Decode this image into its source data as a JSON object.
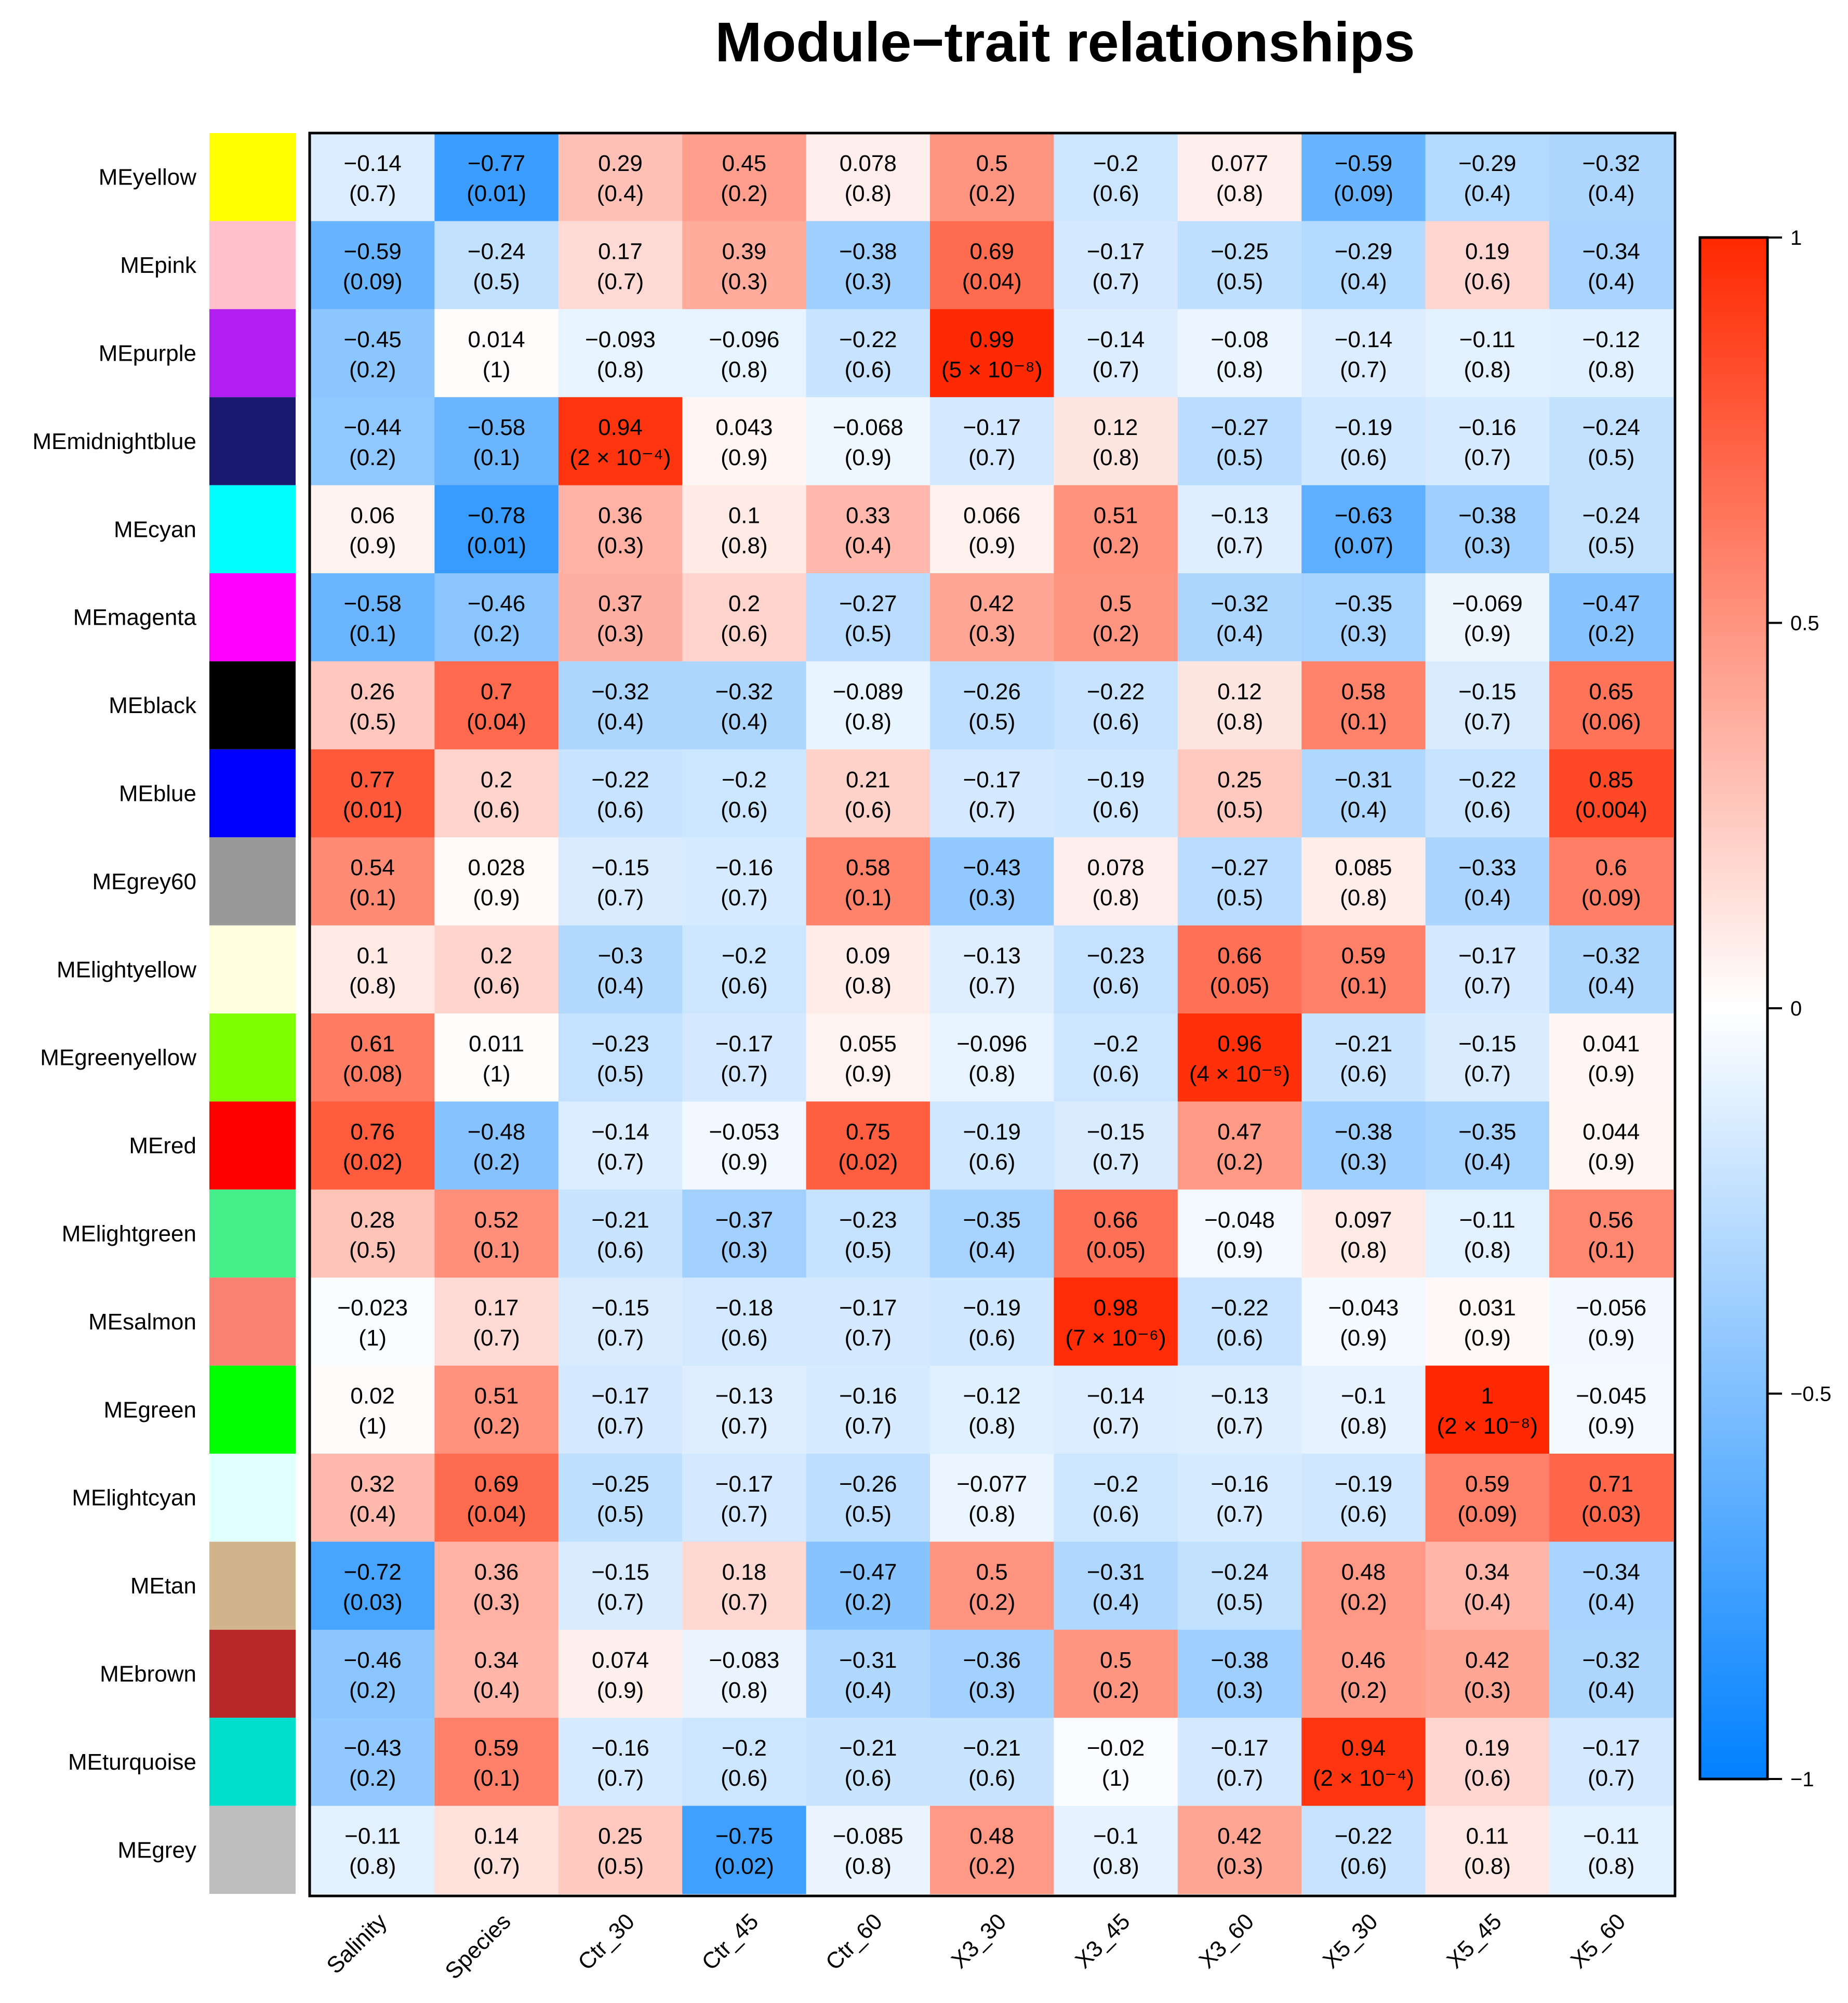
{
  "chart_data": {
    "type": "heatmap",
    "title": "Module−trait relationships",
    "columns": [
      "Salinity",
      "Species",
      "Ctr_30",
      "Ctr_45",
      "Ctr_60",
      "X3_30",
      "X3_45",
      "X3_60",
      "X5_30",
      "X5_45",
      "X5_60"
    ],
    "rows": [
      {
        "module": "MEyellow",
        "color": "#ffff00",
        "r": [
          "−0.14",
          "−0.77",
          "0.29",
          "0.45",
          "0.078",
          "0.5",
          "−0.2",
          "0.077",
          "−0.59",
          "−0.29",
          "−0.32"
        ],
        "p": [
          "(0.7)",
          "(0.01)",
          "(0.4)",
          "(0.2)",
          "(0.8)",
          "(0.2)",
          "(0.6)",
          "(0.8)",
          "(0.09)",
          "(0.4)",
          "(0.4)"
        ]
      },
      {
        "module": "MEpink",
        "color": "#ffc0cb",
        "r": [
          "−0.59",
          "−0.24",
          "0.17",
          "0.39",
          "−0.38",
          "0.69",
          "−0.17",
          "−0.25",
          "−0.29",
          "0.19",
          "−0.34"
        ],
        "p": [
          "(0.09)",
          "(0.5)",
          "(0.7)",
          "(0.3)",
          "(0.3)",
          "(0.04)",
          "(0.7)",
          "(0.5)",
          "(0.4)",
          "(0.6)",
          "(0.4)"
        ]
      },
      {
        "module": "MEpurple",
        "color": "#b21ff0",
        "r": [
          "−0.45",
          "0.014",
          "−0.093",
          "−0.096",
          "−0.22",
          "0.99",
          "−0.14",
          "−0.08",
          "−0.14",
          "−0.11",
          "−0.12"
        ],
        "p": [
          "(0.2)",
          "(1)",
          "(0.8)",
          "(0.8)",
          "(0.6)",
          "(5 × 10⁻⁸)",
          "(0.7)",
          "(0.8)",
          "(0.7)",
          "(0.8)",
          "(0.8)"
        ]
      },
      {
        "module": "MEmidnightblue",
        "color": "#191970",
        "r": [
          "−0.44",
          "−0.58",
          "0.94",
          "0.043",
          "−0.068",
          "−0.17",
          "0.12",
          "−0.27",
          "−0.19",
          "−0.16",
          "−0.24"
        ],
        "p": [
          "(0.2)",
          "(0.1)",
          "(2 × 10⁻⁴)",
          "(0.9)",
          "(0.9)",
          "(0.7)",
          "(0.8)",
          "(0.5)",
          "(0.6)",
          "(0.7)",
          "(0.5)"
        ]
      },
      {
        "module": "MEcyan",
        "color": "#00ffff",
        "r": [
          "0.06",
          "−0.78",
          "0.36",
          "0.1",
          "0.33",
          "0.066",
          "0.51",
          "−0.13",
          "−0.63",
          "−0.38",
          "−0.24"
        ],
        "p": [
          "(0.9)",
          "(0.01)",
          "(0.3)",
          "(0.8)",
          "(0.4)",
          "(0.9)",
          "(0.2)",
          "(0.7)",
          "(0.07)",
          "(0.3)",
          "(0.5)"
        ]
      },
      {
        "module": "MEmagenta",
        "color": "#ff00ff",
        "r": [
          "−0.58",
          "−0.46",
          "0.37",
          "0.2",
          "−0.27",
          "0.42",
          "0.5",
          "−0.32",
          "−0.35",
          "−0.069",
          "−0.47"
        ],
        "p": [
          "(0.1)",
          "(0.2)",
          "(0.3)",
          "(0.6)",
          "(0.5)",
          "(0.3)",
          "(0.2)",
          "(0.4)",
          "(0.3)",
          "(0.9)",
          "(0.2)"
        ]
      },
      {
        "module": "MEblack",
        "color": "#000000",
        "r": [
          "0.26",
          "0.7",
          "−0.32",
          "−0.32",
          "−0.089",
          "−0.26",
          "−0.22",
          "0.12",
          "0.58",
          "−0.15",
          "0.65"
        ],
        "p": [
          "(0.5)",
          "(0.04)",
          "(0.4)",
          "(0.4)",
          "(0.8)",
          "(0.5)",
          "(0.6)",
          "(0.8)",
          "(0.1)",
          "(0.7)",
          "(0.06)"
        ]
      },
      {
        "module": "MEblue",
        "color": "#0000ff",
        "r": [
          "0.77",
          "0.2",
          "−0.22",
          "−0.2",
          "0.21",
          "−0.17",
          "−0.19",
          "0.25",
          "−0.31",
          "−0.22",
          "0.85"
        ],
        "p": [
          "(0.01)",
          "(0.6)",
          "(0.6)",
          "(0.6)",
          "(0.6)",
          "(0.7)",
          "(0.6)",
          "(0.5)",
          "(0.4)",
          "(0.6)",
          "(0.004)"
        ]
      },
      {
        "module": "MEgrey60",
        "color": "#999999",
        "r": [
          "0.54",
          "0.028",
          "−0.15",
          "−0.16",
          "0.58",
          "−0.43",
          "0.078",
          "−0.27",
          "0.085",
          "−0.33",
          "0.6"
        ],
        "p": [
          "(0.1)",
          "(0.9)",
          "(0.7)",
          "(0.7)",
          "(0.1)",
          "(0.3)",
          "(0.8)",
          "(0.5)",
          "(0.8)",
          "(0.4)",
          "(0.09)"
        ]
      },
      {
        "module": "MElightyellow",
        "color": "#ffffe0",
        "r": [
          "0.1",
          "0.2",
          "−0.3",
          "−0.2",
          "0.09",
          "−0.13",
          "−0.23",
          "0.66",
          "0.59",
          "−0.17",
          "−0.32"
        ],
        "p": [
          "(0.8)",
          "(0.6)",
          "(0.4)",
          "(0.6)",
          "(0.8)",
          "(0.7)",
          "(0.6)",
          "(0.05)",
          "(0.1)",
          "(0.7)",
          "(0.4)"
        ]
      },
      {
        "module": "MEgreenyellow",
        "color": "#7fff00",
        "r": [
          "0.61",
          "0.011",
          "−0.23",
          "−0.17",
          "0.055",
          "−0.096",
          "−0.2",
          "0.96",
          "−0.21",
          "−0.15",
          "0.041"
        ],
        "p": [
          "(0.08)",
          "(1)",
          "(0.5)",
          "(0.7)",
          "(0.9)",
          "(0.8)",
          "(0.6)",
          "(4 × 10⁻⁵)",
          "(0.6)",
          "(0.7)",
          "(0.9)"
        ]
      },
      {
        "module": "MEred",
        "color": "#ff0000",
        "r": [
          "0.76",
          "−0.48",
          "−0.14",
          "−0.053",
          "0.75",
          "−0.19",
          "−0.15",
          "0.47",
          "−0.38",
          "−0.35",
          "0.044"
        ],
        "p": [
          "(0.02)",
          "(0.2)",
          "(0.7)",
          "(0.9)",
          "(0.02)",
          "(0.6)",
          "(0.7)",
          "(0.2)",
          "(0.3)",
          "(0.4)",
          "(0.9)"
        ]
      },
      {
        "module": "MElightgreen",
        "color": "#44ee88",
        "r": [
          "0.28",
          "0.52",
          "−0.21",
          "−0.37",
          "−0.23",
          "−0.35",
          "0.66",
          "−0.048",
          "0.097",
          "−0.11",
          "0.56"
        ],
        "p": [
          "(0.5)",
          "(0.1)",
          "(0.6)",
          "(0.3)",
          "(0.5)",
          "(0.4)",
          "(0.05)",
          "(0.9)",
          "(0.8)",
          "(0.8)",
          "(0.1)"
        ]
      },
      {
        "module": "MEsalmon",
        "color": "#fa8072",
        "r": [
          "−0.023",
          "0.17",
          "−0.15",
          "−0.18",
          "−0.17",
          "−0.19",
          "0.98",
          "−0.22",
          "−0.043",
          "0.031",
          "−0.056"
        ],
        "p": [
          "(1)",
          "(0.7)",
          "(0.7)",
          "(0.6)",
          "(0.7)",
          "(0.6)",
          "(7 × 10⁻⁶)",
          "(0.6)",
          "(0.9)",
          "(0.9)",
          "(0.9)"
        ]
      },
      {
        "module": "MEgreen",
        "color": "#00ff00",
        "r": [
          "0.02",
          "0.51",
          "−0.17",
          "−0.13",
          "−0.16",
          "−0.12",
          "−0.14",
          "−0.13",
          "−0.1",
          "1",
          "−0.045"
        ],
        "p": [
          "(1)",
          "(0.2)",
          "(0.7)",
          "(0.7)",
          "(0.7)",
          "(0.8)",
          "(0.7)",
          "(0.7)",
          "(0.8)",
          "(2 × 10⁻⁸)",
          "(0.9)"
        ]
      },
      {
        "module": "MElightcyan",
        "color": "#e0ffff",
        "r": [
          "0.32",
          "0.69",
          "−0.25",
          "−0.17",
          "−0.26",
          "−0.077",
          "−0.2",
          "−0.16",
          "−0.19",
          "0.59",
          "0.71"
        ],
        "p": [
          "(0.4)",
          "(0.04)",
          "(0.5)",
          "(0.7)",
          "(0.5)",
          "(0.8)",
          "(0.6)",
          "(0.7)",
          "(0.6)",
          "(0.09)",
          "(0.03)"
        ]
      },
      {
        "module": "MEtan",
        "color": "#d2b48c",
        "r": [
          "−0.72",
          "0.36",
          "−0.15",
          "0.18",
          "−0.47",
          "0.5",
          "−0.31",
          "−0.24",
          "0.48",
          "0.34",
          "−0.34"
        ],
        "p": [
          "(0.03)",
          "(0.3)",
          "(0.7)",
          "(0.7)",
          "(0.2)",
          "(0.2)",
          "(0.4)",
          "(0.5)",
          "(0.2)",
          "(0.4)",
          "(0.4)"
        ]
      },
      {
        "module": "MEbrown",
        "color": "#b92828",
        "r": [
          "−0.46",
          "0.34",
          "0.074",
          "−0.083",
          "−0.31",
          "−0.36",
          "0.5",
          "−0.38",
          "0.46",
          "0.42",
          "−0.32"
        ],
        "p": [
          "(0.2)",
          "(0.4)",
          "(0.9)",
          "(0.8)",
          "(0.4)",
          "(0.3)",
          "(0.2)",
          "(0.3)",
          "(0.2)",
          "(0.3)",
          "(0.4)"
        ]
      },
      {
        "module": "MEturquoise",
        "color": "#00dfcc",
        "r": [
          "−0.43",
          "0.59",
          "−0.16",
          "−0.2",
          "−0.21",
          "−0.21",
          "−0.02",
          "−0.17",
          "0.94",
          "0.19",
          "−0.17"
        ],
        "p": [
          "(0.2)",
          "(0.1)",
          "(0.7)",
          "(0.6)",
          "(0.6)",
          "(0.6)",
          "(1)",
          "(0.7)",
          "(2 × 10⁻⁴)",
          "(0.6)",
          "(0.7)"
        ]
      },
      {
        "module": "MEgrey",
        "color": "#bebebe",
        "r": [
          "−0.11",
          "0.14",
          "0.25",
          "−0.75",
          "−0.085",
          "0.48",
          "−0.1",
          "0.42",
          "−0.22",
          "0.11",
          "−0.11"
        ],
        "p": [
          "(0.8)",
          "(0.7)",
          "(0.5)",
          "(0.02)",
          "(0.8)",
          "(0.2)",
          "(0.8)",
          "(0.3)",
          "(0.6)",
          "(0.8)",
          "(0.8)"
        ]
      }
    ],
    "colorbar": {
      "range": [
        -1,
        1
      ],
      "ticks": [
        "−1",
        "−0.5",
        "0",
        "0.5",
        "1"
      ],
      "tick_values": [
        -1,
        -0.5,
        0,
        0.5,
        1
      ],
      "low_color": "#0080ff",
      "mid_color": "#ffffff",
      "high_color": "#ff2800"
    }
  }
}
